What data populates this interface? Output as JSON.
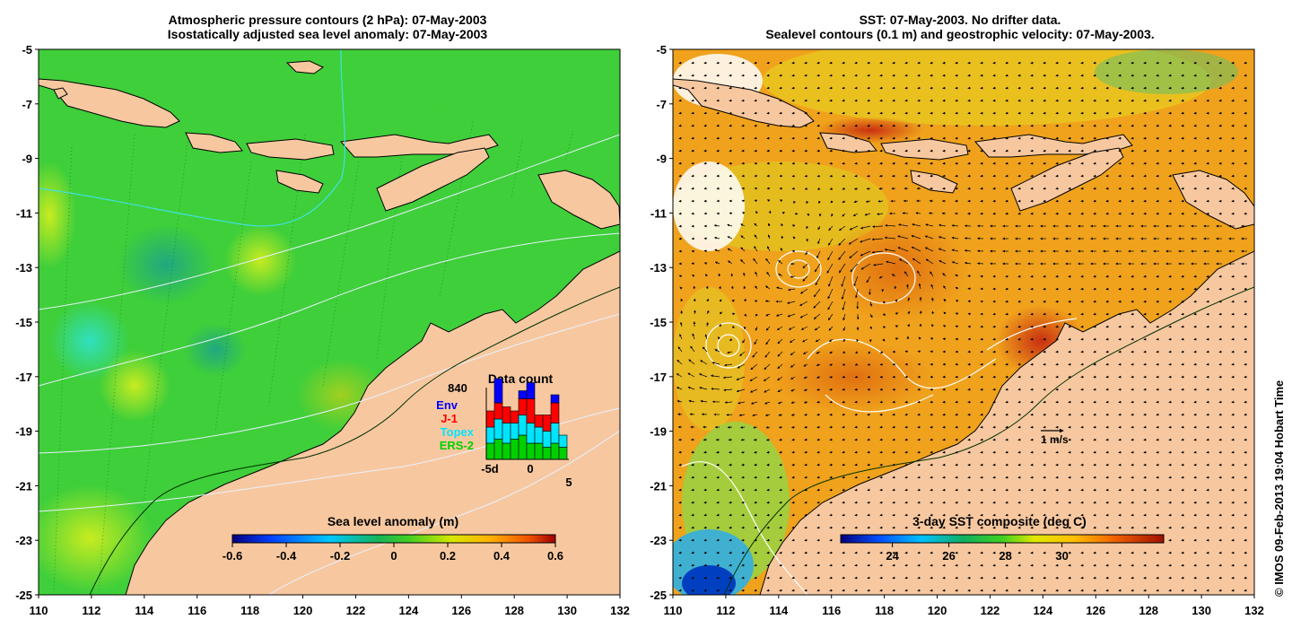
{
  "left_panel": {
    "title_line1": "Atmospheric pressure contours (2 hPa): 07-May-2003",
    "title_line2": "Isostatically adjusted sea level anomaly: 07-May-2003",
    "colorbar_label": "Sea level anomaly (m)",
    "colorbar_ticks": [
      "-0.6",
      "-0.4",
      "-0.2",
      "0",
      "0.2",
      "0.4",
      "0.6"
    ],
    "inset": {
      "title": "Data count",
      "total": "840",
      "legend": [
        {
          "label": "Env",
          "color": "#0000ff"
        },
        {
          "label": "J-1",
          "color": "#ff0000"
        },
        {
          "label": "Topex",
          "color": "#00e5ff"
        },
        {
          "label": "ERS-2",
          "color": "#00d000"
        }
      ],
      "x_ticks": [
        "-5d",
        "0",
        "5"
      ],
      "bars": [
        {
          "ers": 4,
          "topex": 4,
          "j1": 4,
          "env": 0
        },
        {
          "ers": 5,
          "topex": 5,
          "j1": 4,
          "env": 6
        },
        {
          "ers": 4,
          "topex": 5,
          "j1": 4,
          "env": 0
        },
        {
          "ers": 5,
          "topex": 4,
          "j1": 3,
          "env": 0
        },
        {
          "ers": 6,
          "topex": 5,
          "j1": 4,
          "env": 2
        },
        {
          "ers": 4,
          "topex": 5,
          "j1": 6,
          "env": 4
        },
        {
          "ers": 4,
          "topex": 4,
          "j1": 3,
          "env": 0
        },
        {
          "ers": 3,
          "topex": 4,
          "j1": 4,
          "env": 0
        },
        {
          "ers": 4,
          "topex": 5,
          "j1": 5,
          "env": 2
        },
        {
          "ers": 3,
          "topex": 3,
          "j1": 0,
          "env": 0
        }
      ]
    }
  },
  "right_panel": {
    "title_line1": "SST: 07-May-2003. No drifter data.",
    "title_line2": "Sealevel contours (0.1 m) and geostrophic velocity: 07-May-2003.",
    "colorbar_label": "3-day SST composite (deg C)",
    "colorbar_ticks": [
      "24",
      "26",
      "28",
      "30"
    ],
    "velocity_scale": "1 m/s"
  },
  "axes": {
    "lat_ticks": [
      "-5",
      "-7",
      "-9",
      "-11",
      "-13",
      "-15",
      "-17",
      "-19",
      "-21",
      "-23",
      "-25"
    ],
    "lon_ticks": [
      "110",
      "112",
      "114",
      "116",
      "118",
      "120",
      "122",
      "124",
      "126",
      "128",
      "130",
      "132"
    ]
  },
  "colors": {
    "land": "#f7c8a0",
    "coast": "#000000",
    "ocean_left": "#3fcf3a",
    "ocean_right": "#f0a21c"
  },
  "copyright": "© IMOS 09-Feb-2013 19:04 Hobart Time"
}
